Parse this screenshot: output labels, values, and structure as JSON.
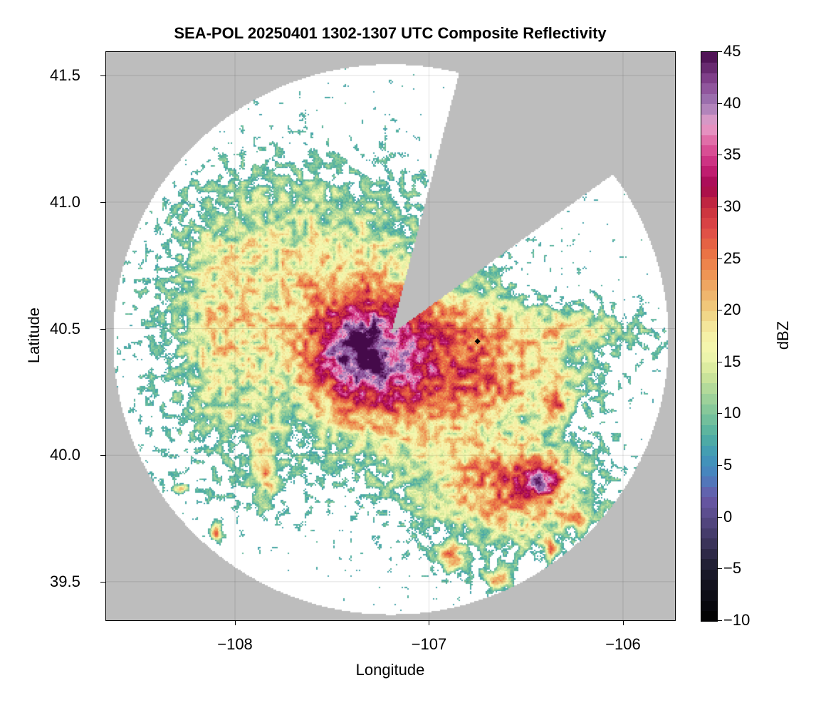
{
  "chart_data": {
    "type": "heatmap",
    "title": "SEA-POL 20250401 1302-1307 UTC Composite Reflectivity",
    "xlabel": "Longitude",
    "ylabel": "Latitude",
    "xlim": [
      -108.668,
      -105.732
    ],
    "ylim": [
      39.345,
      41.596
    ],
    "xticks": [
      -108,
      -107,
      -106
    ],
    "xtick_labels": [
      "−108",
      "−107",
      "−106"
    ],
    "yticks": [
      39.5,
      40.0,
      40.5,
      41.0,
      41.5
    ],
    "ytick_labels": [
      "39.5",
      "40.0",
      "40.5",
      "41.0",
      "41.5"
    ],
    "grid": true,
    "background_color": "#bdbdbd",
    "coverage_color": "#ffffff",
    "radar_origin": {
      "lon": -107.2,
      "lat": 40.48
    },
    "coverage": {
      "center_lon": -107.2,
      "center_lat": 40.46,
      "radius_lon_deg": 1.431,
      "radius_lat_deg": 1.087,
      "blocked_azimuth_deg": [
        14.7,
        54.3
      ]
    },
    "marker": {
      "lon": -106.75,
      "lat": 40.45,
      "shape": "diamond",
      "color": "#000000"
    },
    "colorbar": {
      "label": "dBZ",
      "range": [
        -10,
        45
      ],
      "step": 1,
      "ticks": [
        -10,
        -5,
        0,
        5,
        10,
        15,
        20,
        25,
        30,
        35,
        40,
        45
      ],
      "tick_labels": [
        "−10",
        "−5",
        "0",
        "5",
        "10",
        "15",
        "20",
        "25",
        "30",
        "35",
        "40",
        "45"
      ],
      "colormap_stops": [
        [
          -10,
          "#000000"
        ],
        [
          -5,
          "#1c1b2c"
        ],
        [
          0,
          "#574a86"
        ],
        [
          2,
          "#6959a8"
        ],
        [
          4,
          "#4a80c0"
        ],
        [
          6,
          "#3f98b8"
        ],
        [
          8,
          "#52b0a0"
        ],
        [
          10,
          "#7cc49a"
        ],
        [
          12,
          "#a8d59a"
        ],
        [
          14,
          "#d4e89a"
        ],
        [
          16,
          "#f4f8b0"
        ],
        [
          18,
          "#f5eea4"
        ],
        [
          20,
          "#f0cf80"
        ],
        [
          22,
          "#eeae68"
        ],
        [
          24,
          "#ee8d4f"
        ],
        [
          26,
          "#e86a42"
        ],
        [
          28,
          "#dd4848"
        ],
        [
          30,
          "#c8303d"
        ],
        [
          32,
          "#a3064e"
        ],
        [
          34,
          "#c8257a"
        ],
        [
          36,
          "#dd5c9c"
        ],
        [
          38,
          "#e8a2cc"
        ],
        [
          40,
          "#a07ab5"
        ],
        [
          42,
          "#8a4a95"
        ],
        [
          45,
          "#450a4a"
        ]
      ]
    },
    "echo_min_dbz": 7,
    "echo_cells": [
      {
        "lon": -107.5,
        "lat": 40.5,
        "slon": 0.6,
        "slat": 0.38,
        "dbz": 16
      },
      {
        "lon": -107.33,
        "lat": 40.4,
        "slon": 0.22,
        "slat": 0.18,
        "dbz": 24
      },
      {
        "lon": -107.38,
        "lat": 40.43,
        "slon": 0.1,
        "slat": 0.08,
        "dbz": 8
      },
      {
        "lon": -108.1,
        "lat": 40.45,
        "slon": 0.15,
        "slat": 0.35,
        "dbz": 8
      },
      {
        "lon": -107.7,
        "lat": 40.9,
        "slon": 0.38,
        "slat": 0.2,
        "dbz": 6
      },
      {
        "lon": -106.85,
        "lat": 40.5,
        "slon": 0.22,
        "slat": 0.14,
        "dbz": 10
      },
      {
        "lon": -107.0,
        "lat": 40.2,
        "slon": 0.25,
        "slat": 0.15,
        "dbz": 8
      },
      {
        "lon": -106.6,
        "lat": 39.87,
        "slon": 0.33,
        "slat": 0.17,
        "dbz": 22
      },
      {
        "lon": -106.45,
        "lat": 39.9,
        "slon": 0.12,
        "slat": 0.08,
        "dbz": 10
      },
      {
        "lon": -106.42,
        "lat": 39.9,
        "slon": 0.05,
        "slat": 0.04,
        "dbz": 10
      },
      {
        "lon": -106.3,
        "lat": 40.5,
        "slon": 0.32,
        "slat": 0.07,
        "dbz": 14
      },
      {
        "lon": -106.55,
        "lat": 40.3,
        "slon": 0.3,
        "slat": 0.1,
        "dbz": 14
      },
      {
        "lon": -106.9,
        "lat": 39.6,
        "slon": 0.05,
        "slat": 0.04,
        "dbz": 20
      },
      {
        "lon": -106.65,
        "lat": 39.51,
        "slon": 0.06,
        "slat": 0.03,
        "dbz": 20
      },
      {
        "lon": -106.37,
        "lat": 39.63,
        "slon": 0.03,
        "slat": 0.025,
        "dbz": 20
      },
      {
        "lon": -108.1,
        "lat": 39.7,
        "slon": 0.02,
        "slat": 0.02,
        "dbz": 24
      },
      {
        "lon": -106.25,
        "lat": 39.75,
        "slon": 0.05,
        "slat": 0.02,
        "dbz": 17
      },
      {
        "lon": -108.27,
        "lat": 39.87,
        "slon": 0.03,
        "slat": 0.012,
        "dbz": 17
      },
      {
        "lon": -107.85,
        "lat": 39.95,
        "slon": 0.05,
        "slat": 0.12,
        "dbz": 16
      },
      {
        "lon": -106.35,
        "lat": 40.2,
        "slon": 0.05,
        "slat": 0.05,
        "dbz": 15
      }
    ]
  }
}
